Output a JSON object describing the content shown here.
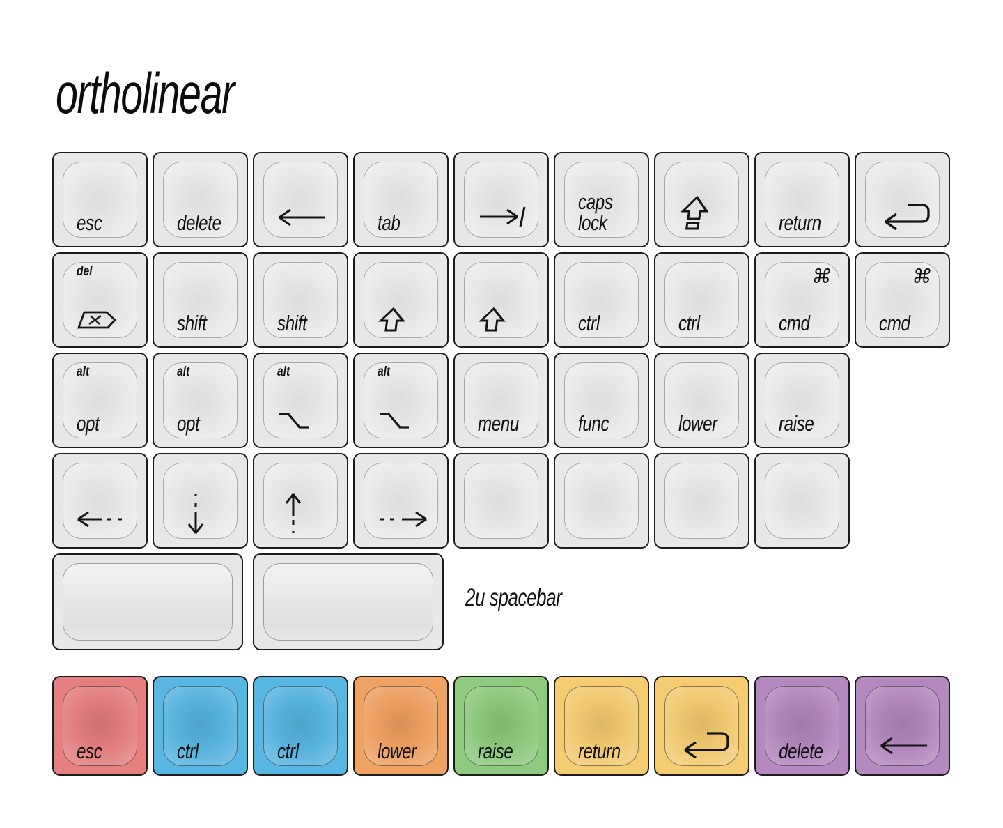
{
  "title": "ortholinear",
  "spacebar_note": "2u spacebar",
  "colors": {
    "red": "#e57f80",
    "blue": "#58b6e2",
    "orange": "#f0a263",
    "green": "#8ecb7e",
    "yellow": "#f5cc72",
    "purple": "#b489bf",
    "keycap_gray": "#e8e8e8",
    "key_border": "#1c1c1c",
    "label_text": "#111111"
  },
  "rows": [
    {
      "keys": [
        {
          "name": "esc",
          "label": "esc"
        },
        {
          "name": "delete",
          "label": "delete"
        },
        {
          "name": "backspace",
          "icon": "arrow-left"
        },
        {
          "name": "tab",
          "label": "tab"
        },
        {
          "name": "tab-symbol",
          "icon": "tab-right"
        },
        {
          "name": "caps-lock",
          "label_lines": [
            "caps",
            "lock"
          ]
        },
        {
          "name": "caps-lock-symbol",
          "icon": "caps-lock"
        },
        {
          "name": "return",
          "label": "return"
        },
        {
          "name": "return-symbol",
          "icon": "return-arrow"
        }
      ]
    },
    {
      "keys": [
        {
          "name": "del-forward",
          "top": "del",
          "icon": "del-forward"
        },
        {
          "name": "shift",
          "label": "shift"
        },
        {
          "name": "shift",
          "label": "shift"
        },
        {
          "name": "shift-symbol",
          "icon": "shift-outline"
        },
        {
          "name": "shift-symbol",
          "icon": "shift-outline"
        },
        {
          "name": "ctrl",
          "label": "ctrl"
        },
        {
          "name": "ctrl",
          "label": "ctrl"
        },
        {
          "name": "cmd",
          "top_right": "⌘",
          "label": "cmd"
        },
        {
          "name": "cmd",
          "top_right": "⌘",
          "label": "cmd"
        }
      ]
    },
    {
      "keys": [
        {
          "name": "opt",
          "top": "alt",
          "label": "opt"
        },
        {
          "name": "opt",
          "top": "alt",
          "label": "opt"
        },
        {
          "name": "opt-symbol",
          "top": "alt",
          "icon": "option"
        },
        {
          "name": "opt-symbol",
          "top": "alt",
          "icon": "option"
        },
        {
          "name": "menu",
          "label": "menu"
        },
        {
          "name": "func",
          "label": "func"
        },
        {
          "name": "lower",
          "label": "lower"
        },
        {
          "name": "raise",
          "label": "raise"
        }
      ]
    },
    {
      "keys": [
        {
          "name": "arrow-left",
          "icon": "arrow-left-dashed"
        },
        {
          "name": "arrow-down",
          "icon": "arrow-down-dashed"
        },
        {
          "name": "arrow-up",
          "icon": "arrow-up-dashed"
        },
        {
          "name": "arrow-right",
          "icon": "arrow-right-dashed"
        },
        {
          "name": "blank"
        },
        {
          "name": "blank"
        },
        {
          "name": "blank"
        },
        {
          "name": "blank"
        }
      ]
    },
    {
      "keys": [
        {
          "name": "spacebar",
          "u": 2,
          "space": true
        },
        {
          "name": "spacebar",
          "u": 2,
          "space": true
        }
      ]
    },
    {
      "keys": [
        {
          "name": "esc",
          "label": "esc",
          "color": "red"
        },
        {
          "name": "ctrl",
          "label": "ctrl",
          "color": "blue"
        },
        {
          "name": "ctrl",
          "label": "ctrl",
          "color": "blue"
        },
        {
          "name": "lower",
          "label": "lower",
          "color": "orange"
        },
        {
          "name": "raise",
          "label": "raise",
          "color": "green"
        },
        {
          "name": "return",
          "label": "return",
          "color": "yellow"
        },
        {
          "name": "return-symbol",
          "icon": "return-arrow",
          "color": "yellow"
        },
        {
          "name": "delete",
          "label": "delete",
          "color": "purple"
        },
        {
          "name": "backspace",
          "icon": "arrow-left",
          "color": "purple"
        }
      ]
    }
  ]
}
